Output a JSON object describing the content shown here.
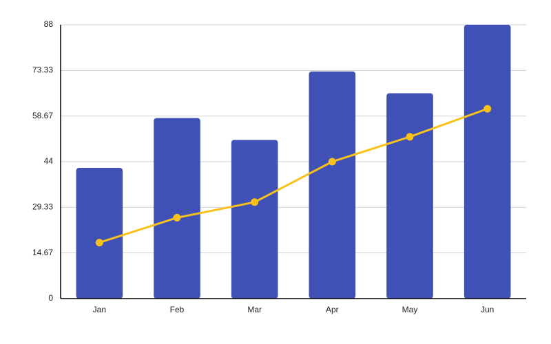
{
  "chart_data": {
    "type": "combo",
    "categories": [
      "Jan",
      "Feb",
      "Mar",
      "Apr",
      "May",
      "Jun"
    ],
    "series": [
      {
        "type": "bar",
        "color": "#3f51b5",
        "values": [
          42,
          58,
          51,
          73,
          66,
          88
        ]
      },
      {
        "type": "line",
        "color": "#f9c21a",
        "values": [
          18,
          26,
          31,
          44,
          52,
          61
        ]
      }
    ],
    "ylim": [
      0,
      88
    ],
    "yticks": [
      0,
      14.67,
      29.33,
      44,
      58.67,
      73.33,
      88
    ],
    "grid": true
  }
}
